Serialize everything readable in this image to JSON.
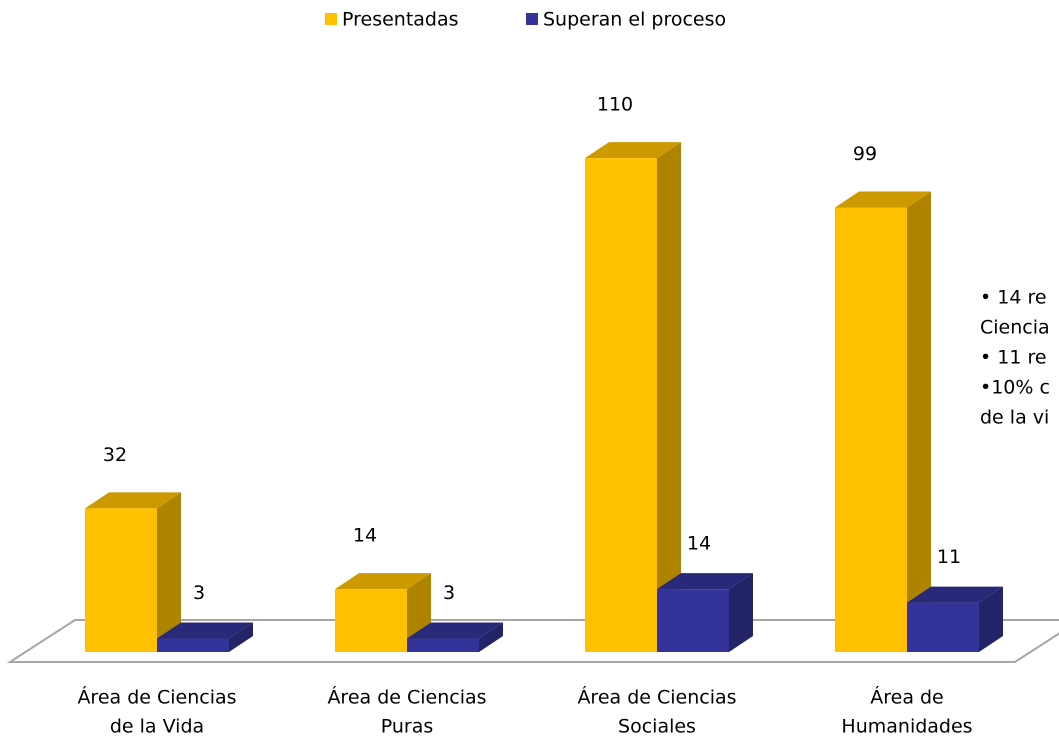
{
  "chart_data": {
    "type": "bar3d",
    "categories": [
      [
        "Área de Ciencias",
        "de la Vida"
      ],
      [
        "Área de Ciencias",
        "Puras"
      ],
      [
        "Área de Ciencias",
        "Sociales"
      ],
      [
        "Área de",
        "Humanidades"
      ]
    ],
    "series": [
      {
        "name": "Presentadas",
        "color": "#FFC000",
        "values": [
          32,
          14,
          110,
          99
        ]
      },
      {
        "name": "Superan el proceso",
        "color": "#333399",
        "values": [
          3,
          3,
          14,
          11
        ]
      }
    ],
    "annotations": [
      "• 14  re",
      "Ciencia",
      "• 11 re",
      "•10% c",
      "de la vi"
    ]
  }
}
